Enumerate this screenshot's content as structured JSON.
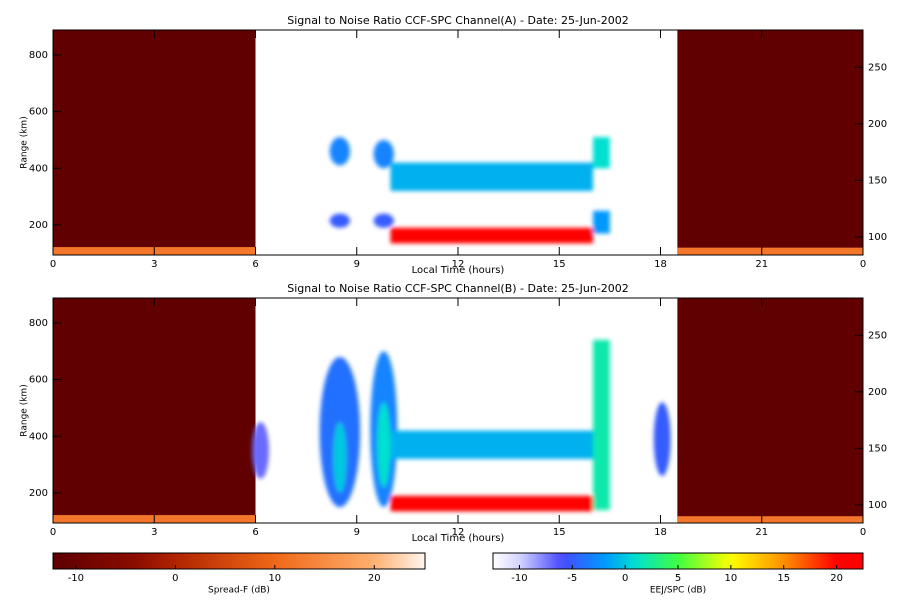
{
  "chart_data": [
    {
      "type": "heatmap",
      "title": "Signal to Noise Ratio CCF-SPC Channel(A) - Date: 25-Jun-2002",
      "xlabel": "Local Time (hours)",
      "ylabel": "Range (km)",
      "xlim": [
        0,
        24
      ],
      "xticks": [
        0,
        3,
        6,
        9,
        12,
        15,
        18,
        21,
        {
          "value": 24,
          "label": "0"
        }
      ],
      "ylim": [
        94,
        888
      ],
      "yticks": [
        200,
        400,
        600,
        800
      ],
      "y2lim": [
        84,
        283
      ],
      "y2ticks": [
        100,
        150,
        200,
        250
      ],
      "spread_f": [
        {
          "shape": "rect",
          "x0": 0,
          "x1": 6,
          "y0": 94,
          "y1": 888,
          "value": -12
        },
        {
          "shape": "rect",
          "x0": 0,
          "x1": 6,
          "y0": 94,
          "y1": 122,
          "value": 12
        },
        {
          "shape": "rect",
          "x0": 18.5,
          "x1": 24,
          "y0": 94,
          "y1": 888,
          "value": -12
        },
        {
          "shape": "rect",
          "x0": 18.5,
          "x1": 24,
          "y0": 94,
          "y1": 120,
          "value": 12
        }
      ],
      "eej": [
        {
          "shape": "ellipse",
          "x0": 8.2,
          "x1": 8.8,
          "y0": 410,
          "y1": 510,
          "value": -3
        },
        {
          "shape": "ellipse",
          "x0": 9.5,
          "x1": 10.1,
          "y0": 400,
          "y1": 500,
          "value": -3
        },
        {
          "shape": "ellipse",
          "x0": 8.2,
          "x1": 8.8,
          "y0": 190,
          "y1": 240,
          "value": -5
        },
        {
          "shape": "ellipse",
          "x0": 9.5,
          "x1": 10.1,
          "y0": 190,
          "y1": 240,
          "value": -5
        },
        {
          "shape": "rect",
          "x0": 10,
          "x1": 16,
          "y0": 320,
          "y1": 420,
          "value": -1
        },
        {
          "shape": "rect",
          "x0": 10,
          "x1": 16,
          "y0": 135,
          "y1": 190,
          "value": 22
        },
        {
          "shape": "rect",
          "x0": 16,
          "x1": 16.5,
          "y0": 400,
          "y1": 510,
          "value": 1
        },
        {
          "shape": "rect",
          "x0": 16,
          "x1": 16.5,
          "y0": 170,
          "y1": 250,
          "value": -2
        }
      ]
    },
    {
      "type": "heatmap",
      "title": "Signal to Noise Ratio CCF-SPC Channel(B) - Date: 25-Jun-2002",
      "xlabel": "Local Time (hours)",
      "ylabel": "Range (km)",
      "xlim": [
        0,
        24
      ],
      "xticks": [
        0,
        3,
        6,
        9,
        12,
        15,
        18,
        21,
        {
          "value": 24,
          "label": "0"
        }
      ],
      "ylim": [
        94,
        888
      ],
      "yticks": [
        200,
        400,
        600,
        800
      ],
      "y2lim": [
        84,
        283
      ],
      "y2ticks": [
        100,
        150,
        200,
        250
      ],
      "spread_f": [
        {
          "shape": "rect",
          "x0": 0,
          "x1": 6,
          "y0": 94,
          "y1": 888,
          "value": -12
        },
        {
          "shape": "rect",
          "x0": 0,
          "x1": 6,
          "y0": 94,
          "y1": 122,
          "value": 12
        },
        {
          "shape": "rect",
          "x0": 18.5,
          "x1": 24,
          "y0": 94,
          "y1": 888,
          "value": -12
        },
        {
          "shape": "rect",
          "x0": 18.5,
          "x1": 24,
          "y0": 94,
          "y1": 118,
          "value": 12
        }
      ],
      "eej": [
        {
          "shape": "ellipse",
          "x0": 5.9,
          "x1": 6.4,
          "y0": 250,
          "y1": 450,
          "value": -7
        },
        {
          "shape": "ellipse",
          "x0": 7.9,
          "x1": 9.1,
          "y0": 150,
          "y1": 680,
          "value": -4
        },
        {
          "shape": "ellipse",
          "x0": 8.3,
          "x1": 8.7,
          "y0": 200,
          "y1": 450,
          "value": 0
        },
        {
          "shape": "ellipse",
          "x0": 9.4,
          "x1": 10.2,
          "y0": 150,
          "y1": 700,
          "value": -3
        },
        {
          "shape": "ellipse",
          "x0": 9.6,
          "x1": 10,
          "y0": 220,
          "y1": 520,
          "value": 1
        },
        {
          "shape": "rect",
          "x0": 10,
          "x1": 16,
          "y0": 320,
          "y1": 420,
          "value": -1
        },
        {
          "shape": "rect",
          "x0": 10,
          "x1": 16,
          "y0": 135,
          "y1": 190,
          "value": 22
        },
        {
          "shape": "rect",
          "x0": 16,
          "x1": 16.5,
          "y0": 140,
          "y1": 740,
          "value": 2
        },
        {
          "shape": "ellipse",
          "x0": 17.8,
          "x1": 18.3,
          "y0": 260,
          "y1": 520,
          "value": -5
        }
      ]
    }
  ],
  "colorbars": [
    {
      "label": "Spread-F (dB)",
      "kind": "spread_f",
      "lim": [
        -12.3,
        25.1
      ],
      "ticks": [
        -10,
        0,
        10,
        20
      ]
    },
    {
      "label": "EEJ/SPC (dB)",
      "kind": "eej",
      "lim": [
        -12.5,
        22.5
      ],
      "ticks": [
        -10,
        -5,
        0,
        5,
        10,
        15,
        20
      ]
    }
  ]
}
